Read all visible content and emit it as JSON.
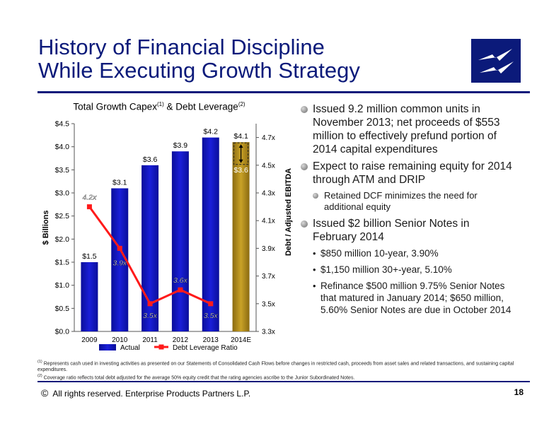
{
  "title": {
    "line1": "History of Financial Discipline",
    "line2": "While Executing Growth Strategy"
  },
  "colors": {
    "title": "#0b1a7a",
    "actual_bar": "#1a1fd8",
    "estimate_bar": "#c9a227",
    "ratio_line": "#ff1a1a"
  },
  "chart_data": {
    "type": "bar",
    "title": "Total Growth Capex",
    "title_sup1": "(1)",
    "title_mid": " & Debt Leverage",
    "title_sup2": "(2)",
    "categories": [
      "2009",
      "2010",
      "2011",
      "2012",
      "2013",
      "2014E"
    ],
    "ylabel": "$ Billions",
    "ylabel_right": "Debt / Adjusted EBITDA",
    "ylim": [
      0,
      4.5
    ],
    "ylim_right": [
      3.3,
      4.8
    ],
    "yticks": [
      "$0.0",
      "$0.5",
      "$1.0",
      "$1.5",
      "$2.0",
      "$2.5",
      "$3.0",
      "$3.5",
      "$4.0",
      "$4.5"
    ],
    "yticks_right": [
      "3.3x",
      "3.5x",
      "3.7x",
      "3.9x",
      "4.1x",
      "4.3x",
      "4.5x",
      "4.7x"
    ],
    "series": [
      {
        "name": "Actual",
        "type": "bar",
        "values": [
          1.5,
          3.1,
          3.6,
          3.9,
          4.2,
          null
        ],
        "labels": [
          "$1.5",
          "$3.1",
          "$3.6",
          "$3.9",
          "$4.2",
          ""
        ]
      },
      {
        "name": "2014E",
        "type": "bar",
        "values": [
          null,
          null,
          null,
          null,
          null,
          4.1
        ],
        "labels": [
          "",
          "",
          "",
          "",
          "",
          "$4.1"
        ],
        "low_value": 3.6,
        "low_label": "$3.6"
      },
      {
        "name": "Debt Leverage Ratio",
        "type": "line",
        "axis": "right",
        "values": [
          4.2,
          3.9,
          3.5,
          3.6,
          3.5,
          null
        ],
        "labels": [
          "4.2x",
          "3.9x",
          "3.5x",
          "3.6x",
          "3.5x",
          ""
        ]
      }
    ],
    "legend_actual": "Actual",
    "legend_ratio": "Debt Leverage Ratio",
    "grid": false
  },
  "bullets": [
    {
      "level": 1,
      "text": "Issued 9.2 million common units in November 2013; net proceeds of $553 million to effectively prefund portion of 2014 capital expenditures"
    },
    {
      "level": 1,
      "text": "Expect to raise remaining equity for 2014 through ATM and DRIP"
    },
    {
      "level": 2,
      "text": "Retained DCF minimizes the need for additional equity"
    },
    {
      "level": 1,
      "text": "Issued $2 billion Senior Notes in February 2014"
    },
    {
      "level": 3,
      "text": "$850 million 10-year, 3.90%"
    },
    {
      "level": 3,
      "text": "$1,150 million 30+-year, 5.10%"
    },
    {
      "level": 3,
      "text": "Refinance $500 million 9.75% Senior Notes that matured in January 2014; $650 million, 5.60% Senior Notes are due in October 2014"
    }
  ],
  "footnotes": {
    "f1_mark": "(1)",
    "f1": "Represents cash used in investing activities as presented on our Statements of Consolidated Cash Flows before changes in restricted cash, proceeds from asset sales and related transactions, and sustaining capital expenditures.",
    "f2_mark": "(2)",
    "f2": "Coverage ratio reflects total debt adjusted for the average 50% equity credit that the rating agencies ascribe to the Junior Subordinated Notes."
  },
  "footer": {
    "copyright_symbol": "©",
    "text": "All rights reserved. Enterprise Products Partners L.P.",
    "page": "18"
  }
}
